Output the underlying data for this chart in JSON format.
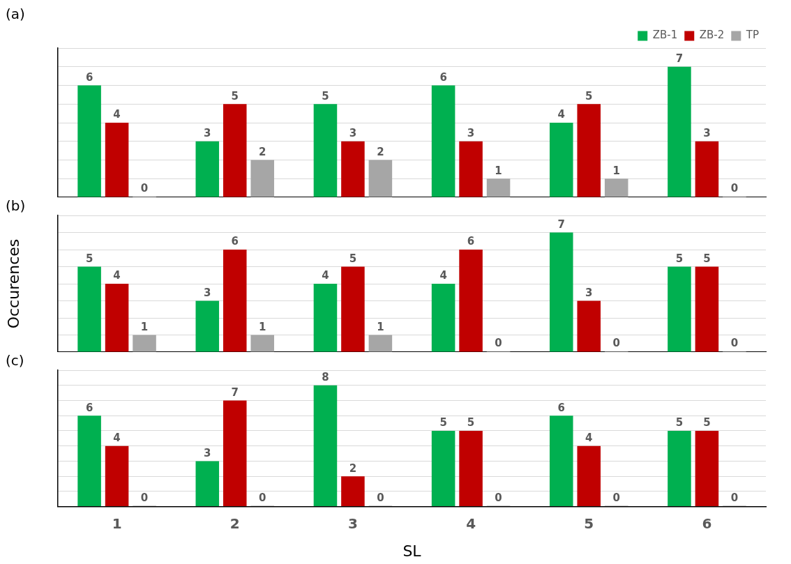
{
  "chart_data": [
    {
      "type": "bar",
      "title": "(a)",
      "categories": [
        "1",
        "2",
        "3",
        "4",
        "5",
        "6"
      ],
      "series": [
        {
          "name": "ZB-1",
          "color": "#00b050",
          "values": [
            6,
            3,
            5,
            6,
            4,
            7
          ]
        },
        {
          "name": "ZB-2",
          "color": "#c00000",
          "values": [
            4,
            5,
            3,
            3,
            5,
            3
          ]
        },
        {
          "name": "TP",
          "color": "#a6a6a6",
          "values": [
            0,
            2,
            2,
            1,
            1,
            0
          ]
        }
      ],
      "ylim": [
        0,
        8
      ],
      "yticks": [
        {
          "value": 0,
          "label": null
        },
        {
          "value": 1,
          "label": null
        },
        {
          "value": 2,
          "label": null
        },
        {
          "value": 3,
          "label": null
        },
        {
          "value": 4,
          "label": null
        },
        {
          "value": 5,
          "label": null
        },
        {
          "value": 6,
          "label": null
        },
        {
          "value": 7,
          "label": null
        },
        {
          "value": 8,
          "label": null
        }
      ],
      "grid": "y",
      "legend": "top right",
      "tick_labels": false,
      "data_labels": true
    },
    {
      "type": "bar",
      "title": "(b)",
      "ylabel": "Occurences",
      "categories": [
        "1",
        "2",
        "3",
        "4",
        "5",
        "6"
      ],
      "series": [
        {
          "color": "#00b050",
          "values": [
            5,
            3,
            4,
            4,
            7,
            5
          ]
        },
        {
          "color": "#c00000",
          "values": [
            4,
            6,
            5,
            6,
            3,
            5
          ]
        },
        {
          "color": "#a6a6a6",
          "values": [
            1,
            1,
            1,
            0,
            0,
            0
          ]
        }
      ],
      "ylim": [
        0,
        8
      ],
      "yticks": [
        {
          "value": 0,
          "label": null
        },
        {
          "value": 1,
          "label": null
        },
        {
          "value": 2,
          "label": null
        },
        {
          "value": 3,
          "label": null
        },
        {
          "value": 4,
          "label": null
        },
        {
          "value": 5,
          "label": null
        },
        {
          "value": 6,
          "label": null
        },
        {
          "value": 7,
          "label": null
        },
        {
          "value": 8,
          "label": null
        }
      ],
      "grid": "y",
      "tick_labels": false,
      "data_labels": true
    },
    {
      "type": "bar",
      "title": "(c)",
      "xlabel": "SL",
      "categories": [
        "1",
        "2",
        "3",
        "4",
        "5",
        "6"
      ],
      "series": [
        {
          "color": "#00b050",
          "values": [
            6,
            3,
            8,
            5,
            6,
            5
          ]
        },
        {
          "color": "#c00000",
          "values": [
            4,
            7,
            2,
            5,
            4,
            5
          ]
        },
        {
          "color": "#a6a6a6",
          "values": [
            0,
            0,
            0,
            0,
            0,
            0
          ]
        }
      ],
      "ylim": [
        0,
        9
      ],
      "yticks": [
        {
          "value": 0,
          "label": null
        },
        {
          "value": 1,
          "label": null
        },
        {
          "value": 2,
          "label": null
        },
        {
          "value": 3,
          "label": null
        },
        {
          "value": 4,
          "label": null
        },
        {
          "value": 5,
          "label": null
        },
        {
          "value": 6,
          "label": null
        },
        {
          "value": 7,
          "label": null
        },
        {
          "value": 8,
          "label": null
        },
        {
          "value": 9,
          "label": null
        }
      ],
      "grid": "y",
      "tick_labels": "x",
      "data_labels": true
    }
  ]
}
